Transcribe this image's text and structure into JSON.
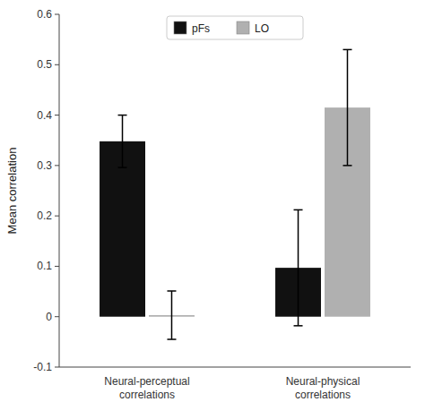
{
  "chart_data": {
    "type": "bar",
    "categories": [
      "Neural-perceptual\ncorrelations",
      "Neural-physical\ncorrelations"
    ],
    "series": [
      {
        "name": "pFs",
        "color": "#111111",
        "values": [
          0.348,
          0.097
        ],
        "errors": [
          0.052,
          0.115
        ]
      },
      {
        "name": "LO",
        "color": "#b0b0b0",
        "values": [
          0.003,
          0.415
        ],
        "errors": [
          0.048,
          0.115
        ]
      }
    ],
    "ylabel": "Mean correlation",
    "ylim": [
      -0.1,
      0.6
    ],
    "yticks": [
      -0.1,
      0,
      0.1,
      0.2,
      0.3,
      0.4,
      0.5,
      0.6
    ],
    "grid": false,
    "legend": "upper center"
  }
}
